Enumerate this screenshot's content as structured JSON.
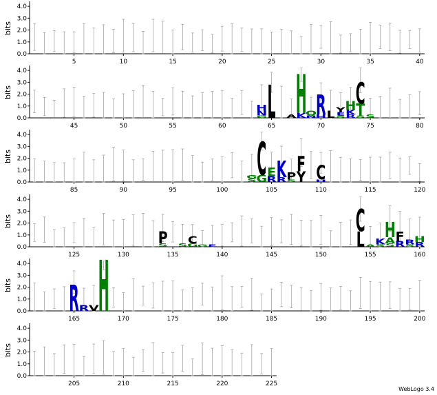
{
  "chart_data": {
    "type": "sequence-logo",
    "ylabel": "bits",
    "ylim": [
      0,
      4.3
    ],
    "yticks": [
      "0.0",
      "1.0",
      "2.0",
      "3.0",
      "4.0"
    ],
    "colors": {
      "green": "#008000",
      "blue": "#0000cc",
      "black": "#000000",
      "error": "#999999"
    },
    "rows": [
      {
        "start": 1,
        "end": 40,
        "xticks": [
          5,
          10,
          15,
          20,
          25,
          30,
          35,
          40
        ]
      },
      {
        "start": 41,
        "end": 80,
        "xticks": [
          45,
          50,
          55,
          60,
          65,
          70,
          75,
          80
        ]
      },
      {
        "start": 81,
        "end": 120,
        "xticks": [
          85,
          90,
          95,
          100,
          105,
          110,
          115,
          120
        ]
      },
      {
        "start": 121,
        "end": 160,
        "xticks": [
          125,
          130,
          135,
          140,
          145,
          150,
          155,
          160
        ]
      },
      {
        "start": 161,
        "end": 200,
        "xticks": [
          165,
          170,
          175,
          180,
          185,
          190,
          195,
          200
        ]
      },
      {
        "start": 201,
        "end": 225,
        "xticks": [
          205,
          210,
          215,
          220,
          225
        ]
      }
    ],
    "positions": [
      {
        "pos": 64,
        "letters": [
          {
            "l": "H",
            "h": 0.5,
            "c": "blue"
          },
          {
            "l": "N",
            "h": 0.4,
            "c": "blue"
          },
          {
            "l": "G",
            "h": 0.2,
            "c": "green"
          }
        ]
      },
      {
        "pos": 65,
        "letters": [
          {
            "l": "L",
            "h": 2.8,
            "c": "black"
          }
        ]
      },
      {
        "pos": 67,
        "letters": [
          {
            "l": "A",
            "h": 0.3,
            "c": "black"
          }
        ]
      },
      {
        "pos": 68,
        "letters": [
          {
            "l": "H",
            "h": 3.3,
            "c": "green"
          },
          {
            "l": "K",
            "h": 0.4,
            "c": "blue"
          }
        ]
      },
      {
        "pos": 69,
        "letters": [
          {
            "l": "Q",
            "h": 0.4,
            "c": "green"
          },
          {
            "l": "N",
            "h": 0.2,
            "c": "blue"
          }
        ]
      },
      {
        "pos": 70,
        "letters": [
          {
            "l": "R",
            "h": 1.7,
            "c": "blue"
          },
          {
            "l": "H",
            "h": 0.3,
            "c": "blue"
          }
        ]
      },
      {
        "pos": 71,
        "letters": [
          {
            "l": "L",
            "h": 0.6,
            "c": "black"
          }
        ]
      },
      {
        "pos": 72,
        "letters": [
          {
            "l": "Y",
            "h": 0.4,
            "c": "black"
          },
          {
            "l": "E",
            "h": 0.3,
            "c": "blue"
          },
          {
            "l": "S",
            "h": 0.2,
            "c": "green"
          }
        ]
      },
      {
        "pos": 73,
        "letters": [
          {
            "l": "H",
            "h": 0.7,
            "c": "green"
          },
          {
            "l": "K",
            "h": 0.4,
            "c": "blue"
          },
          {
            "l": "R",
            "h": 0.3,
            "c": "blue"
          }
        ]
      },
      {
        "pos": 74,
        "letters": [
          {
            "l": "C",
            "h": 1.8,
            "c": "black"
          },
          {
            "l": "T",
            "h": 1.0,
            "c": "green"
          },
          {
            "l": "S",
            "h": 0.2,
            "c": "green"
          }
        ]
      },
      {
        "pos": 75,
        "letters": [
          {
            "l": "S",
            "h": 0.3,
            "c": "green"
          }
        ]
      },
      {
        "pos": 103,
        "letters": [
          {
            "l": "S",
            "h": 0.3,
            "c": "green"
          },
          {
            "l": "G",
            "h": 0.3,
            "c": "green"
          }
        ]
      },
      {
        "pos": 104,
        "letters": [
          {
            "l": "C",
            "h": 2.8,
            "c": "black"
          },
          {
            "l": "G",
            "h": 0.6,
            "c": "green"
          }
        ]
      },
      {
        "pos": 105,
        "letters": [
          {
            "l": "E",
            "h": 0.7,
            "c": "green"
          },
          {
            "l": "R",
            "h": 0.5,
            "c": "blue"
          }
        ]
      },
      {
        "pos": 106,
        "letters": [
          {
            "l": "K",
            "h": 1.4,
            "c": "blue"
          },
          {
            "l": "R",
            "h": 0.4,
            "c": "blue"
          }
        ]
      },
      {
        "pos": 107,
        "letters": [
          {
            "l": "P",
            "h": 0.6,
            "c": "black"
          },
          {
            "l": "S",
            "h": 0.2,
            "c": "green"
          }
        ]
      },
      {
        "pos": 108,
        "letters": [
          {
            "l": "F",
            "h": 1.3,
            "c": "black"
          },
          {
            "l": "Y",
            "h": 0.9,
            "c": "black"
          }
        ]
      },
      {
        "pos": 110,
        "letters": [
          {
            "l": "C",
            "h": 1.2,
            "c": "black"
          },
          {
            "l": "H",
            "h": 0.2,
            "c": "blue"
          }
        ]
      },
      {
        "pos": 134,
        "letters": [
          {
            "l": "P",
            "h": 1.0,
            "c": "black"
          },
          {
            "l": "S",
            "h": 0.3,
            "c": "green"
          }
        ]
      },
      {
        "pos": 136,
        "letters": [
          {
            "l": "S",
            "h": 0.3,
            "c": "green"
          }
        ]
      },
      {
        "pos": 137,
        "letters": [
          {
            "l": "C",
            "h": 0.6,
            "c": "black"
          },
          {
            "l": "G",
            "h": 0.3,
            "c": "green"
          }
        ]
      },
      {
        "pos": 138,
        "letters": [
          {
            "l": "G",
            "h": 0.2,
            "c": "green"
          }
        ]
      },
      {
        "pos": 139,
        "letters": [
          {
            "l": "E",
            "h": 0.2,
            "c": "blue"
          }
        ]
      },
      {
        "pos": 154,
        "letters": [
          {
            "l": "C",
            "h": 1.9,
            "c": "black"
          },
          {
            "l": "L",
            "h": 1.3,
            "c": "black"
          }
        ]
      },
      {
        "pos": 155,
        "letters": [
          {
            "l": "A",
            "h": 0.2,
            "c": "green"
          }
        ]
      },
      {
        "pos": 156,
        "letters": [
          {
            "l": "K",
            "h": 0.5,
            "c": "blue"
          },
          {
            "l": "S",
            "h": 0.2,
            "c": "green"
          }
        ]
      },
      {
        "pos": 157,
        "letters": [
          {
            "l": "H",
            "h": 1.3,
            "c": "green"
          },
          {
            "l": "A",
            "h": 0.5,
            "c": "green"
          },
          {
            "l": "S",
            "h": 0.3,
            "c": "green"
          }
        ]
      },
      {
        "pos": 158,
        "letters": [
          {
            "l": "F",
            "h": 0.8,
            "c": "black"
          },
          {
            "l": "R",
            "h": 0.5,
            "c": "blue"
          }
        ]
      },
      {
        "pos": 159,
        "letters": [
          {
            "l": "R",
            "h": 0.4,
            "c": "blue"
          },
          {
            "l": "S",
            "h": 0.2,
            "c": "green"
          }
        ]
      },
      {
        "pos": 160,
        "letters": [
          {
            "l": "H",
            "h": 0.5,
            "c": "green"
          },
          {
            "l": "R",
            "h": 0.4,
            "c": "blue"
          }
        ]
      },
      {
        "pos": 165,
        "letters": [
          {
            "l": "R",
            "h": 2.2,
            "c": "blue"
          }
        ]
      },
      {
        "pos": 166,
        "letters": [
          {
            "l": "R",
            "h": 0.5,
            "c": "blue"
          }
        ]
      },
      {
        "pos": 167,
        "letters": [
          {
            "l": "V",
            "h": 0.5,
            "c": "black"
          }
        ]
      },
      {
        "pos": 168,
        "letters": [
          {
            "l": "H",
            "h": 4.3,
            "c": "green"
          }
        ]
      }
    ],
    "footer": "WebLogo 3.4"
  }
}
